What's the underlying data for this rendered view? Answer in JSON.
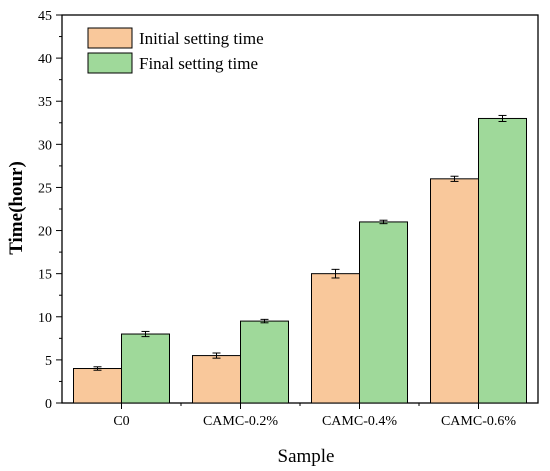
{
  "chart_data": {
    "type": "bar",
    "title": "",
    "xlabel": "Sample",
    "ylabel": "Time(hour)",
    "categories": [
      "C0",
      "CAMC-0.2%",
      "CAMC-0.4%",
      "CAMC-0.6%"
    ],
    "series": [
      {
        "name": "Initial setting time",
        "color": "#f9c89b",
        "values": [
          4.0,
          5.5,
          15.0,
          26.0
        ],
        "errors": [
          0.2,
          0.3,
          0.5,
          0.3
        ]
      },
      {
        "name": "Final setting time",
        "color": "#9fd99a",
        "values": [
          8.0,
          9.5,
          21.0,
          33.0
        ],
        "errors": [
          0.3,
          0.2,
          0.2,
          0.35
        ]
      }
    ],
    "ylim": [
      0,
      45
    ],
    "yticks": [
      0,
      5,
      10,
      15,
      20,
      25,
      30,
      35,
      40,
      45
    ],
    "grid": false,
    "legend_position": "top-left"
  }
}
